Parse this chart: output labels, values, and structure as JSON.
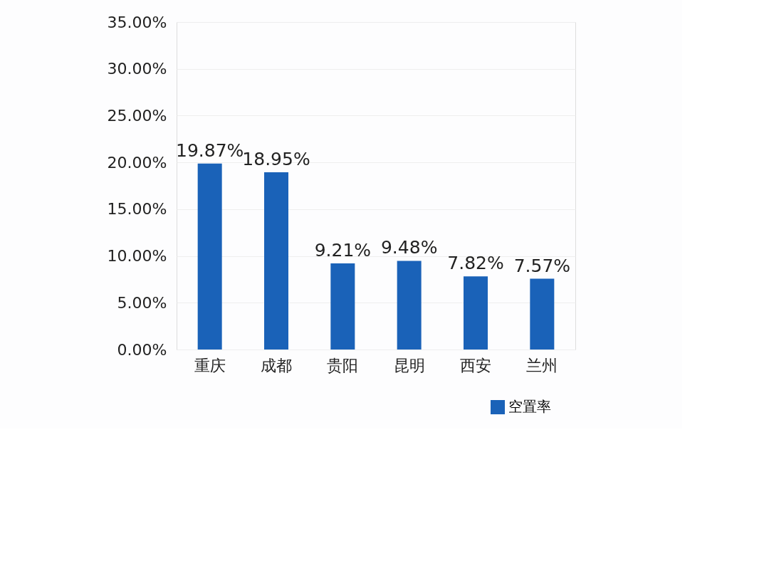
{
  "chart_data": {
    "type": "bar",
    "categories": [
      "重庆",
      "成都",
      "贵阳",
      "昆明",
      "西安",
      "兰州"
    ],
    "series": [
      {
        "name": "空置率",
        "color": "#1a62b8",
        "values": [
          19.87,
          18.95,
          9.21,
          9.48,
          7.82,
          7.57
        ],
        "value_labels": [
          "19.87%",
          "18.95%",
          "9.21%",
          "9.48%",
          "7.82%",
          "7.57%"
        ]
      }
    ],
    "ylim": [
      0,
      35
    ],
    "yticks": [
      {
        "value": 0,
        "label": "0.00%"
      },
      {
        "value": 5,
        "label": "5.00%"
      },
      {
        "value": 10,
        "label": "10.00%"
      },
      {
        "value": 15,
        "label": "15.00%"
      },
      {
        "value": 20,
        "label": "20.00%"
      },
      {
        "value": 25,
        "label": "25.00%"
      },
      {
        "value": 30,
        "label": "30.00%"
      },
      {
        "value": 35,
        "label": "35.00%"
      }
    ],
    "grid": "y",
    "legend": "bottom right"
  }
}
